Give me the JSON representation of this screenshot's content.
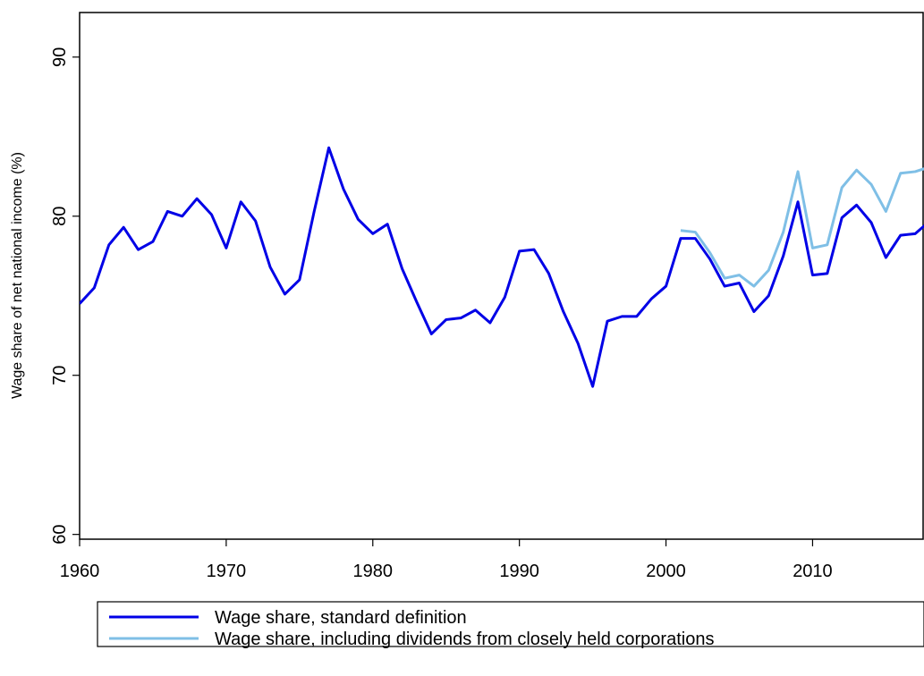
{
  "chart_data": {
    "type": "line",
    "y_label": "Wage share of net national income  (%)",
    "x": [
      1960,
      1961,
      1962,
      1963,
      1964,
      1965,
      1966,
      1967,
      1968,
      1969,
      1970,
      1971,
      1972,
      1973,
      1974,
      1975,
      1976,
      1977,
      1978,
      1979,
      1980,
      1981,
      1982,
      1983,
      1984,
      1985,
      1986,
      1987,
      1988,
      1989,
      1990,
      1991,
      1992,
      1993,
      1994,
      1995,
      1996,
      1997,
      1998,
      1999,
      2000,
      2001,
      2002,
      2003,
      2004,
      2005,
      2006,
      2007,
      2008,
      2009,
      2010,
      2011,
      2012,
      2013,
      2014,
      2015,
      2016,
      2017,
      2018
    ],
    "series": [
      {
        "name": "Wage share, standard definition",
        "color": "#0000e6",
        "values": [
          74.5,
          75.5,
          78.2,
          79.3,
          77.9,
          78.4,
          80.3,
          80.0,
          81.1,
          80.1,
          78.0,
          80.9,
          79.7,
          76.8,
          75.1,
          76.0,
          80.3,
          84.3,
          81.7,
          79.8,
          78.9,
          79.5,
          76.7,
          74.6,
          72.6,
          73.5,
          73.6,
          74.1,
          73.3,
          74.9,
          77.8,
          77.9,
          76.4,
          74.0,
          72.0,
          69.3,
          73.4,
          73.7,
          73.7,
          74.8,
          75.6,
          78.6,
          78.6,
          77.3,
          75.6,
          75.8,
          74.0,
          75.0,
          77.5,
          80.9,
          76.3,
          76.4,
          79.9,
          80.7,
          79.6,
          77.4,
          78.8,
          78.9,
          79.7
        ]
      },
      {
        "name": "Wage share, including dividends from closely held corporations",
        "color": "#7fbfe6",
        "values": [
          null,
          null,
          null,
          null,
          null,
          null,
          null,
          null,
          null,
          null,
          null,
          null,
          null,
          null,
          null,
          null,
          null,
          null,
          null,
          null,
          null,
          null,
          null,
          null,
          null,
          null,
          null,
          null,
          null,
          null,
          null,
          null,
          null,
          null,
          null,
          null,
          null,
          null,
          null,
          null,
          null,
          79.1,
          79.0,
          77.7,
          76.1,
          76.3,
          75.6,
          76.6,
          79.0,
          82.8,
          78.0,
          78.2,
          81.8,
          82.9,
          82.0,
          80.3,
          82.7,
          82.8,
          83.1
        ]
      }
    ],
    "xlim": [
      1960,
      2017.6
    ],
    "xticks": [
      1960,
      1970,
      1980,
      1990,
      2000,
      2010
    ],
    "ylim": [
      59.7,
      92.8
    ],
    "yticks": [
      60,
      70,
      80,
      90
    ],
    "grid": false
  }
}
